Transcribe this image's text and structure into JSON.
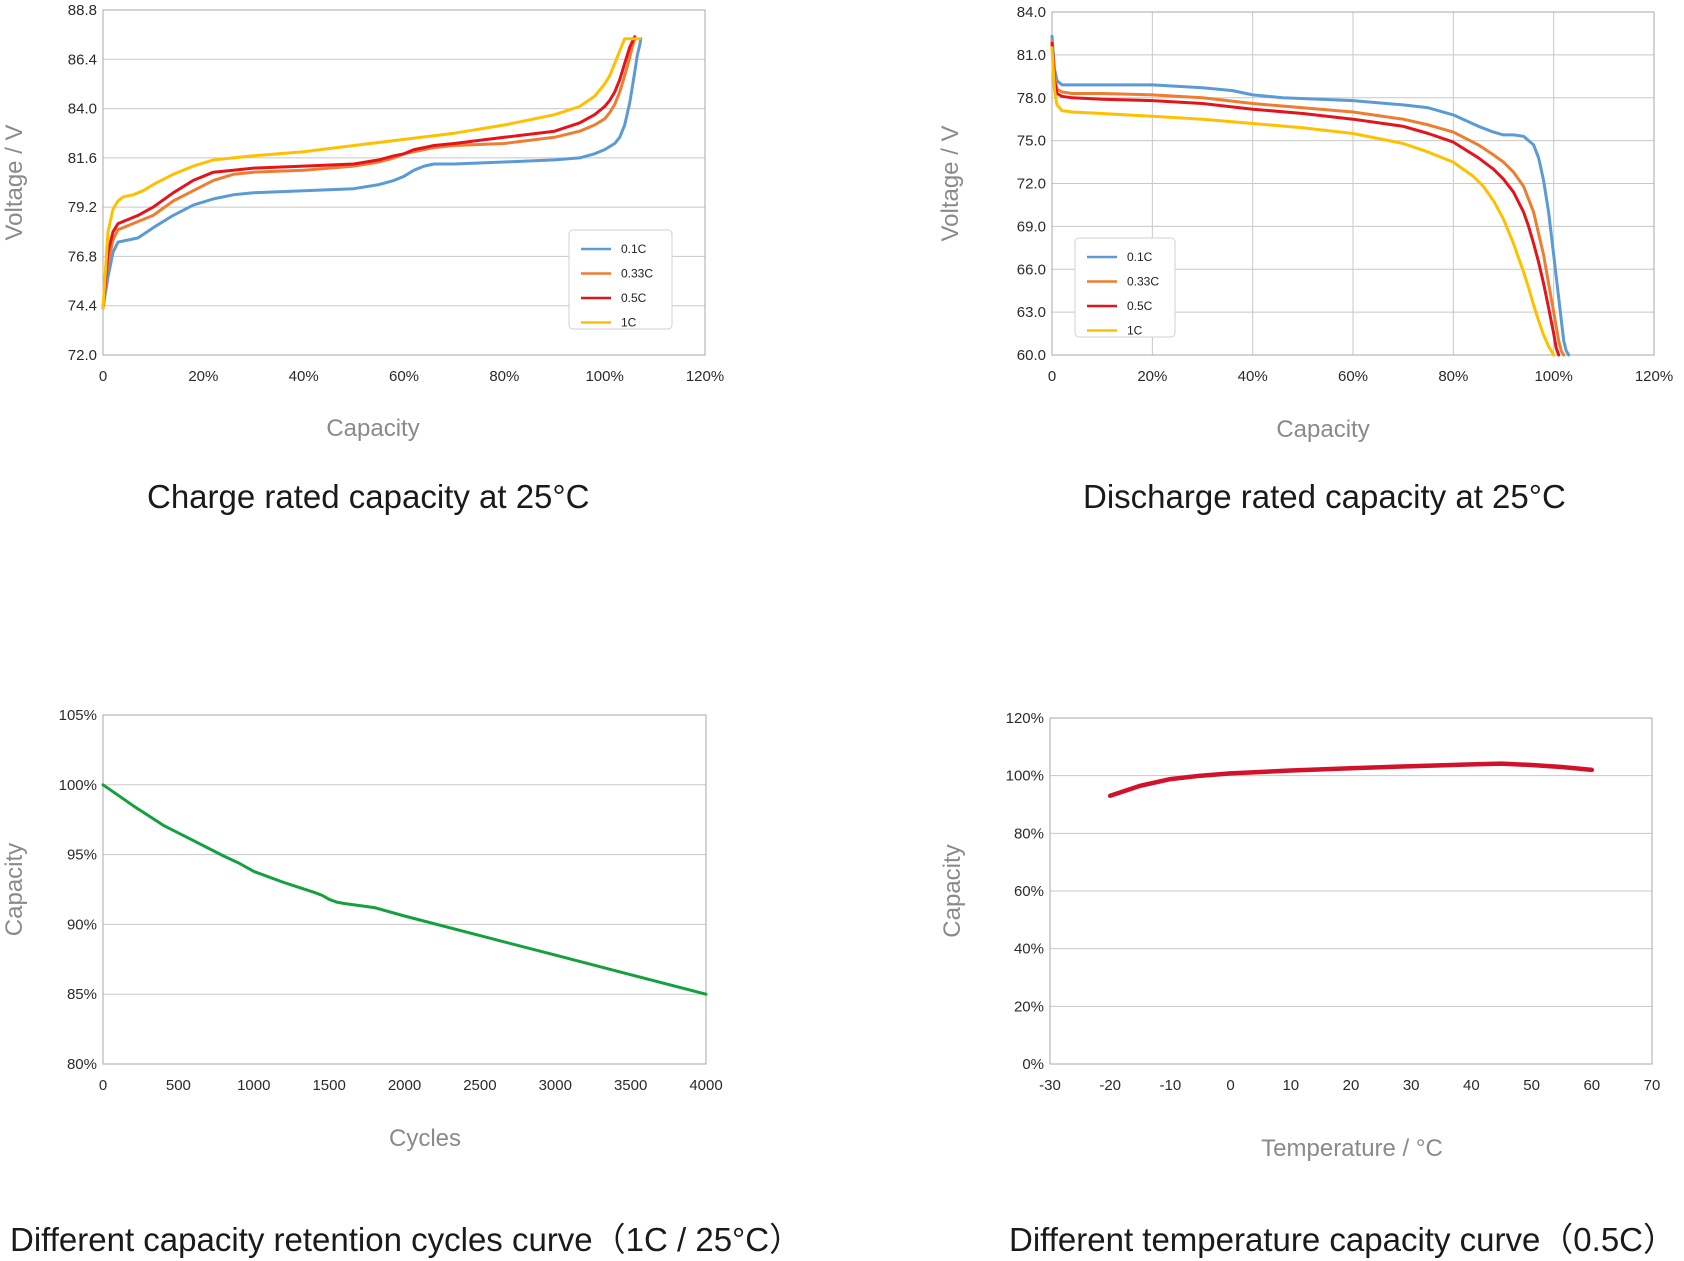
{
  "chart_data": [
    {
      "id": "charge",
      "type": "line",
      "title": "Charge rated capacity at 25°C",
      "xlabel": "Capacity",
      "ylabel": "Voltage / V",
      "xlim": [
        0,
        120
      ],
      "ylim": [
        72.0,
        88.8
      ],
      "xtick_values": [
        0,
        20,
        40,
        60,
        80,
        100,
        120
      ],
      "xtick_labels": [
        "0",
        "20%",
        "40%",
        "60%",
        "80%",
        "100%",
        "120%"
      ],
      "ytick_values": [
        72.0,
        74.4,
        76.8,
        79.2,
        81.6,
        84.0,
        86.4,
        88.8
      ],
      "ytick_labels": [
        "72.0",
        "74.4",
        "76.8",
        "79.2",
        "81.6",
        "84.0",
        "86.4",
        "88.8"
      ],
      "grid": "horizontal",
      "legend": "bottom-right",
      "series": [
        {
          "name": "0.1C",
          "color": "#5b9bd5",
          "x": [
            0,
            1,
            2,
            3,
            5,
            7,
            10,
            14,
            18,
            22,
            26,
            30,
            40,
            50,
            55,
            58,
            60,
            62,
            64,
            66,
            70,
            80,
            90,
            95,
            98,
            100,
            102,
            103,
            104,
            105,
            106,
            106.5,
            107,
            107.2
          ],
          "y": [
            74.3,
            75.8,
            77.0,
            77.5,
            77.6,
            77.7,
            78.2,
            78.8,
            79.3,
            79.6,
            79.8,
            79.9,
            80.0,
            80.1,
            80.3,
            80.5,
            80.7,
            81.0,
            81.2,
            81.3,
            81.3,
            81.4,
            81.5,
            81.6,
            81.8,
            82.0,
            82.3,
            82.6,
            83.2,
            84.3,
            85.8,
            86.6,
            87.1,
            87.4
          ]
        },
        {
          "name": "0.33C",
          "color": "#ed7d31",
          "x": [
            0,
            1,
            2,
            3,
            5,
            7,
            10,
            14,
            18,
            22,
            26,
            30,
            40,
            50,
            55,
            58,
            60,
            62,
            64,
            66,
            70,
            80,
            90,
            95,
            98,
            100,
            101,
            102,
            103,
            104,
            105,
            105.5,
            106
          ],
          "y": [
            74.3,
            76.5,
            77.6,
            78.1,
            78.3,
            78.5,
            78.8,
            79.5,
            80.0,
            80.5,
            80.8,
            80.9,
            81.0,
            81.2,
            81.4,
            81.6,
            81.8,
            81.9,
            82.0,
            82.1,
            82.2,
            82.3,
            82.6,
            82.9,
            83.2,
            83.5,
            83.8,
            84.2,
            84.8,
            85.6,
            86.5,
            87.0,
            87.4
          ]
        },
        {
          "name": "0.5C",
          "color": "#e3141b",
          "x": [
            0,
            1,
            2,
            3,
            5,
            7,
            10,
            14,
            18,
            22,
            26,
            30,
            40,
            50,
            55,
            58,
            60,
            62,
            64,
            66,
            70,
            80,
            90,
            95,
            98,
            100,
            101,
            102,
            103,
            104,
            105,
            106
          ],
          "y": [
            74.3,
            77.0,
            78.0,
            78.4,
            78.6,
            78.8,
            79.2,
            79.9,
            80.5,
            80.9,
            81.0,
            81.1,
            81.2,
            81.3,
            81.5,
            81.7,
            81.8,
            82.0,
            82.1,
            82.2,
            82.3,
            82.6,
            82.9,
            83.3,
            83.7,
            84.1,
            84.4,
            84.8,
            85.4,
            86.2,
            87.0,
            87.5
          ]
        },
        {
          "name": "1C",
          "color": "#ffc000",
          "x": [
            0,
            1,
            2,
            3,
            4,
            6,
            8,
            10,
            14,
            18,
            22,
            26,
            30,
            40,
            50,
            60,
            70,
            80,
            90,
            95,
            98,
            100,
            101,
            102,
            103,
            104,
            105,
            106,
            106.5,
            107
          ],
          "y": [
            74.3,
            78.0,
            79.1,
            79.5,
            79.7,
            79.8,
            80.0,
            80.3,
            80.8,
            81.2,
            81.5,
            81.6,
            81.7,
            81.9,
            82.2,
            82.5,
            82.8,
            83.2,
            83.7,
            84.1,
            84.6,
            85.2,
            85.6,
            86.2,
            86.8,
            87.4,
            87.4,
            87.4,
            87.4,
            87.4
          ]
        }
      ]
    },
    {
      "id": "discharge",
      "type": "line",
      "title": "Discharge rated capacity at 25°C",
      "xlabel": "Capacity",
      "ylabel": "Voltage / V",
      "xlim": [
        0,
        120
      ],
      "ylim": [
        60.0,
        84.0
      ],
      "xtick_values": [
        0,
        20,
        40,
        60,
        80,
        100,
        120
      ],
      "xtick_labels": [
        "0",
        "20%",
        "40%",
        "60%",
        "80%",
        "100%",
        "120%"
      ],
      "ytick_values": [
        60.0,
        63.0,
        66.0,
        69.0,
        72.0,
        75.0,
        78.0,
        81.0,
        84.0
      ],
      "ytick_labels": [
        "60.0",
        "63.0",
        "66.0",
        "69.0",
        "72.0",
        "75.0",
        "78.0",
        "81.0",
        "84.0"
      ],
      "grid": "both",
      "legend": "bottom-left",
      "series": [
        {
          "name": "0.1C",
          "color": "#5b9bd5",
          "x": [
            0,
            0.5,
            1,
            2,
            4,
            10,
            20,
            30,
            36,
            40,
            46,
            60,
            70,
            75,
            80,
            85,
            88,
            90,
            92,
            94,
            96,
            97,
            98,
            99,
            100,
            101,
            101.5,
            102,
            102.5,
            103
          ],
          "y": [
            82.3,
            80.0,
            79.2,
            78.9,
            78.9,
            78.9,
            78.9,
            78.7,
            78.5,
            78.2,
            78.0,
            77.8,
            77.5,
            77.3,
            76.8,
            76.0,
            75.6,
            75.4,
            75.4,
            75.3,
            74.7,
            73.8,
            72.2,
            70.0,
            67.0,
            64.0,
            62.5,
            61.0,
            60.3,
            60.0
          ]
        },
        {
          "name": "0.33C",
          "color": "#ed7d31",
          "x": [
            0,
            0.5,
            1,
            2,
            4,
            10,
            20,
            30,
            40,
            50,
            60,
            70,
            75,
            80,
            85,
            88,
            90,
            92,
            94,
            96,
            97,
            98,
            99,
            100,
            101,
            101.5,
            102
          ],
          "y": [
            82.0,
            79.5,
            78.6,
            78.4,
            78.3,
            78.3,
            78.2,
            78.0,
            77.6,
            77.3,
            77.0,
            76.5,
            76.1,
            75.6,
            74.7,
            74.0,
            73.5,
            72.8,
            71.8,
            70.0,
            68.5,
            67.0,
            65.0,
            63.0,
            61.0,
            60.3,
            60.0
          ]
        },
        {
          "name": "0.5C",
          "color": "#e3141b",
          "x": [
            0,
            0.5,
            1,
            2,
            4,
            10,
            20,
            30,
            40,
            50,
            60,
            70,
            75,
            80,
            85,
            88,
            90,
            92,
            94,
            95,
            96,
            97,
            98,
            99,
            100,
            100.5,
            101
          ],
          "y": [
            81.8,
            79.2,
            78.3,
            78.1,
            78.0,
            77.9,
            77.8,
            77.6,
            77.2,
            76.9,
            76.5,
            76.0,
            75.5,
            74.9,
            73.8,
            73.0,
            72.3,
            71.4,
            70.0,
            69.0,
            67.8,
            66.5,
            65.0,
            63.3,
            61.5,
            60.5,
            60.0
          ]
        },
        {
          "name": "1C",
          "color": "#ffc000",
          "x": [
            0,
            0.5,
            1,
            2,
            4,
            10,
            20,
            30,
            40,
            50,
            60,
            70,
            75,
            80,
            84,
            86,
            88,
            90,
            92,
            94,
            95,
            96,
            97,
            98,
            99,
            100
          ],
          "y": [
            81.5,
            78.5,
            77.5,
            77.1,
            77.0,
            76.9,
            76.7,
            76.5,
            76.2,
            75.9,
            75.5,
            74.8,
            74.2,
            73.5,
            72.5,
            71.8,
            70.8,
            69.5,
            67.8,
            65.8,
            64.7,
            63.5,
            62.4,
            61.4,
            60.6,
            60.0
          ]
        }
      ]
    },
    {
      "id": "cycles",
      "type": "line",
      "title": "Different capacity retention cycles curve（1C / 25°C）",
      "xlabel": "Cycles",
      "ylabel": "Capacity",
      "xlim": [
        0,
        4000
      ],
      "ylim": [
        80,
        105
      ],
      "xtick_values": [
        0,
        500,
        1000,
        1500,
        2000,
        2500,
        3000,
        3500,
        4000
      ],
      "xtick_labels": [
        "0",
        "500",
        "1000",
        "1500",
        "2000",
        "2500",
        "3000",
        "3500",
        "4000"
      ],
      "ytick_values": [
        80,
        85,
        90,
        95,
        100,
        105
      ],
      "ytick_labels": [
        "80%",
        "85%",
        "90%",
        "95%",
        "100%",
        "105%"
      ],
      "grid": "horizontal",
      "series": [
        {
          "name": "",
          "color": "#14a03c",
          "x": [
            0,
            200,
            400,
            600,
            800,
            900,
            1000,
            1200,
            1400,
            1450,
            1500,
            1550,
            1600,
            1800,
            2000,
            2500,
            3000,
            3500,
            4000
          ],
          "y": [
            100.0,
            98.5,
            97.1,
            96.0,
            94.9,
            94.4,
            93.8,
            93.0,
            92.3,
            92.1,
            91.8,
            91.6,
            91.5,
            91.2,
            90.6,
            89.2,
            87.8,
            86.4,
            85.0
          ]
        }
      ]
    },
    {
      "id": "temperature",
      "type": "line",
      "title": "Different temperature capacity curve（0.5C）",
      "xlabel": "Temperature / °C",
      "ylabel": "Capacity",
      "xlim": [
        -30,
        70
      ],
      "ylim": [
        0,
        120
      ],
      "xtick_values": [
        -30,
        -20,
        -10,
        0,
        10,
        20,
        30,
        40,
        50,
        60,
        70
      ],
      "xtick_labels": [
        "-30",
        "-20",
        "-10",
        "0",
        "10",
        "20",
        "30",
        "40",
        "50",
        "60",
        "70"
      ],
      "ytick_values": [
        0,
        20,
        40,
        60,
        80,
        100,
        120
      ],
      "ytick_labels": [
        "0%",
        "20%",
        "40%",
        "60%",
        "80%",
        "100%",
        "120%"
      ],
      "grid": "horizontal",
      "series": [
        {
          "name": "",
          "color": "#d0122a",
          "x": [
            -20,
            -15,
            -10,
            -5,
            0,
            10,
            20,
            30,
            40,
            45,
            50,
            55,
            60
          ],
          "y": [
            93.0,
            96.5,
            98.8,
            100.0,
            100.8,
            101.8,
            102.6,
            103.3,
            103.9,
            104.2,
            103.7,
            103.0,
            102.0
          ]
        }
      ]
    }
  ]
}
